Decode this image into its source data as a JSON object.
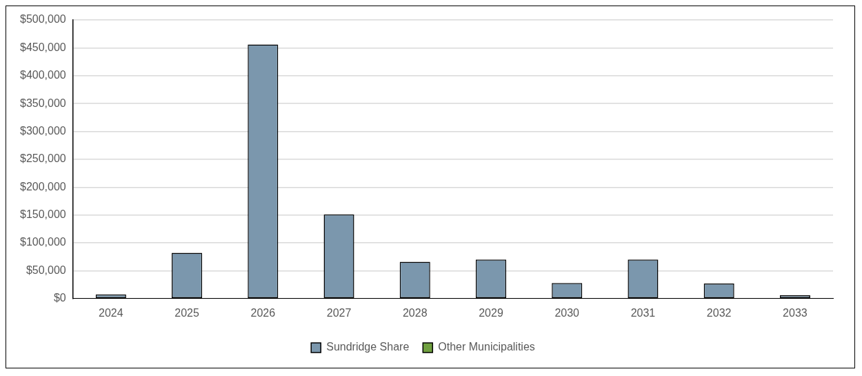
{
  "chart_data": {
    "type": "bar",
    "stacked": true,
    "categories": [
      "2024",
      "2025",
      "2026",
      "2027",
      "2028",
      "2029",
      "2030",
      "2031",
      "2032",
      "2033"
    ],
    "series": [
      {
        "name": "Sundridge Share",
        "color": "#7b97ad",
        "values": [
          7500,
          82000,
          456000,
          151000,
          66000,
          70000,
          28000,
          70000,
          27000,
          6000
        ]
      },
      {
        "name": "Other Municipalities",
        "color": "#70a040",
        "values": [
          0,
          0,
          0,
          0,
          0,
          0,
          0,
          0,
          0,
          0
        ]
      }
    ],
    "ylim": [
      0,
      500000
    ],
    "yticks": [
      {
        "value": 0,
        "label": "$0"
      },
      {
        "value": 50000,
        "label": "$50,000"
      },
      {
        "value": 100000,
        "label": "$100,000"
      },
      {
        "value": 150000,
        "label": "$150,000"
      },
      {
        "value": 200000,
        "label": "$200,000"
      },
      {
        "value": 250000,
        "label": "$250,000"
      },
      {
        "value": 300000,
        "label": "$300,000"
      },
      {
        "value": 350000,
        "label": "$350,000"
      },
      {
        "value": 400000,
        "label": "$400,000"
      },
      {
        "value": 450000,
        "label": "$450,000"
      },
      {
        "value": 500000,
        "label": "$500,000"
      }
    ],
    "grid": "y",
    "legend": "bottom"
  }
}
